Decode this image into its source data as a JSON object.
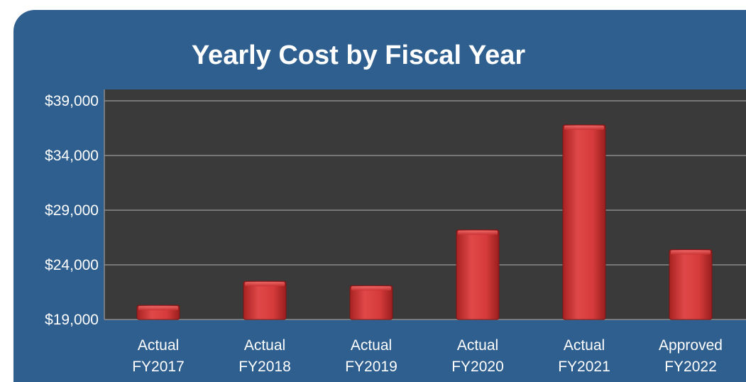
{
  "chart_data": {
    "type": "bar",
    "title": "Yearly Cost by Fiscal Year",
    "categories": [
      [
        "Actual",
        "FY2017"
      ],
      [
        "Actual",
        "FY2018"
      ],
      [
        "Actual",
        "FY2019"
      ],
      [
        "Actual",
        "FY2020"
      ],
      [
        "Actual",
        "FY2021"
      ],
      [
        "Approved",
        "FY2022"
      ]
    ],
    "values": [
      20300,
      22500,
      22100,
      27200,
      36800,
      25400
    ],
    "y_ticks": [
      "$19,000",
      "$24,000",
      "$29,000",
      "$34,000",
      "$39,000"
    ],
    "y_tick_values": [
      19000,
      24000,
      29000,
      34000,
      39000
    ],
    "ylim": [
      19000,
      39000
    ],
    "grid": true,
    "legend": "none",
    "bar_color": "#d43a3a",
    "plot_background": "#3a3a3a",
    "panel_background": "#2f5f8f"
  }
}
